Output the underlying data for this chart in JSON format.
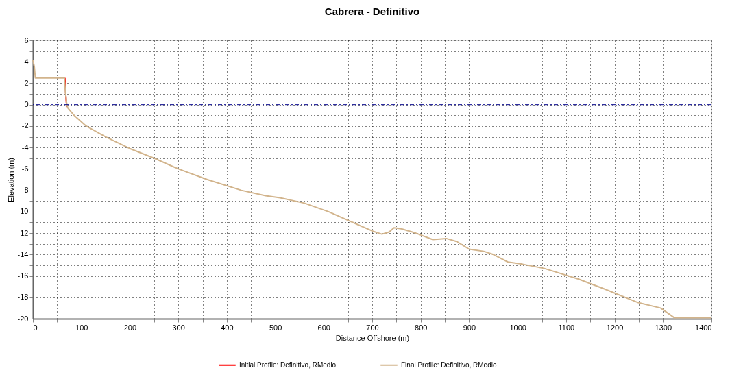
{
  "chart_data": {
    "type": "line",
    "title": "Cabrera - Definitivo",
    "xlabel": "Distance Offshore (m)",
    "ylabel": "Elevation (m)",
    "xlim": [
      0,
      1400
    ],
    "ylim": [
      -20,
      6
    ],
    "xticks": [
      0,
      {
        "value": 50,
        "label": null
      },
      100,
      {
        "value": 150,
        "label": null
      },
      200,
      {
        "value": 250,
        "label": null
      },
      300,
      {
        "value": 350,
        "label": null
      },
      400,
      {
        "value": 450,
        "label": null
      },
      500,
      {
        "value": 550,
        "label": null
      },
      600,
      {
        "value": 650,
        "label": null
      },
      700,
      {
        "value": 750,
        "label": null
      },
      800,
      {
        "value": 850,
        "label": null
      },
      900,
      {
        "value": 950,
        "label": null
      },
      1000,
      {
        "value": 1050,
        "label": null
      },
      1100,
      {
        "value": 1150,
        "label": null
      },
      1200,
      {
        "value": 1250,
        "label": null
      },
      1300,
      {
        "value": 1350,
        "label": null
      },
      1400
    ],
    "yticks": [
      -20,
      {
        "value": -19,
        "label": null
      },
      -18,
      {
        "value": -17,
        "label": null
      },
      -16,
      {
        "value": -15,
        "label": null
      },
      -14,
      {
        "value": -13,
        "label": null
      },
      -12,
      {
        "value": -11,
        "label": null
      },
      -10,
      {
        "value": -9,
        "label": null
      },
      -8,
      {
        "value": -7,
        "label": null
      },
      -6,
      {
        "value": -5,
        "label": null
      },
      -4,
      {
        "value": -3,
        "label": null
      },
      -2,
      {
        "value": -1,
        "label": null
      },
      0,
      {
        "value": 1,
        "label": null
      },
      2,
      {
        "value": 3,
        "label": null
      },
      4,
      {
        "value": 5,
        "label": null
      },
      6
    ],
    "grid": true,
    "legend": "bottom",
    "line_style": "solid",
    "marker": "none",
    "ref_lines": [
      {
        "axis": "y",
        "value": 0,
        "color": "#00008b",
        "line_style": "dashed"
      }
    ],
    "series": [
      {
        "name": "Initial Profile: Definitivo, RMedio",
        "color": "#ff0000",
        "x": [
          66,
          67,
          68,
          69,
          70
        ],
        "values": [
          2.5,
          1.8,
          0.8,
          0.2,
          -0.2
        ]
      },
      {
        "name": "Final Profile: Definitivo, RMedio",
        "color": "#d2b48c",
        "x": [
          0,
          3,
          5,
          30,
          65,
          67,
          70,
          72,
          85,
          110,
          150,
          200,
          250,
          300,
          360,
          430,
          480,
          510,
          560,
          610,
          660,
          700,
          720,
          735,
          745,
          760,
          790,
          825,
          853,
          875,
          900,
          930,
          950,
          980,
          1010,
          1055,
          1126,
          1178,
          1249,
          1295,
          1323,
          1400
        ],
        "values": [
          4.2,
          3.5,
          2.5,
          2.5,
          2.5,
          1.2,
          0.0,
          -0.3,
          -1.0,
          -2.0,
          -3.0,
          -4.1,
          -5.0,
          -6.0,
          -7.0,
          -8.0,
          -8.5,
          -8.7,
          -9.2,
          -10.0,
          -11.0,
          -11.8,
          -12.1,
          -11.9,
          -11.5,
          -11.6,
          -12.0,
          -12.6,
          -12.5,
          -12.8,
          -13.5,
          -13.7,
          -14.0,
          -14.7,
          -14.9,
          -15.3,
          -16.3,
          -17.2,
          -18.5,
          -19.0,
          -19.9,
          -19.9
        ]
      }
    ]
  }
}
